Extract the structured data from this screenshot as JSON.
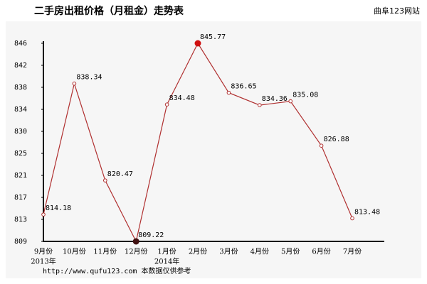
{
  "chart_data": {
    "type": "line",
    "title": "二手房出租价格（月租金）走势表",
    "source": "曲阜123网站",
    "footer": "http://www.qufu123.com 本数据仅供参考",
    "categories": [
      "9月份",
      "10月份",
      "11月份",
      "12月份",
      "1月份",
      "2月份",
      "3月份",
      "4月份",
      "5月份",
      "6月份",
      "7月份"
    ],
    "year_labels": [
      "2013年",
      null,
      null,
      null,
      "2014年",
      null,
      null,
      null,
      null,
      null,
      null
    ],
    "series": [
      {
        "color": "#b03030",
        "values": [
          814.18,
          838.34,
          820.47,
          809.22,
          834.48,
          845.77,
          836.65,
          834.36,
          835.08,
          826.88,
          813.48
        ]
      }
    ],
    "max_color": "#d01010",
    "min_color": "#401010",
    "ylim": [
      809.22,
      845.77
    ],
    "yticks": [
      {
        "value": 809.22,
        "label": "809"
      },
      {
        "value": 813.28,
        "label": "813"
      },
      {
        "value": 817.34,
        "label": "817"
      },
      {
        "value": 821.4,
        "label": "821"
      },
      {
        "value": 825.46,
        "label": "825"
      },
      {
        "value": 829.52,
        "label": "830"
      },
      {
        "value": 833.58,
        "label": "834"
      },
      {
        "value": 837.65,
        "label": "838"
      },
      {
        "value": 841.71,
        "label": "842"
      },
      {
        "value": 845.77,
        "label": "846"
      }
    ],
    "grid": false
  }
}
